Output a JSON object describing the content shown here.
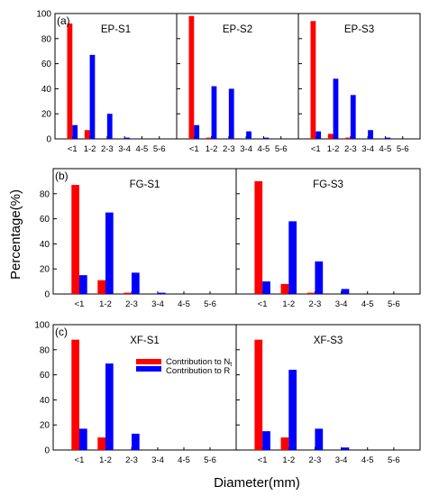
{
  "figure": {
    "ylabel": "Percentage(%)",
    "xlabel": "Diameter(mm)",
    "legend": [
      {
        "label_text": "Contribution to N",
        "label_sub": "t",
        "color": "#ff0000"
      },
      {
        "label_text": "Contribution to R",
        "label_sub": "",
        "color": "#0000ff"
      }
    ]
  },
  "chart_data": [
    {
      "type": "bar",
      "row_label": "(a)",
      "title": "EP-S1",
      "categories": [
        "<1",
        "1-2",
        "2-3",
        "3-4",
        "4-5",
        "5-6"
      ],
      "series": [
        {
          "values": [
            92,
            7,
            0,
            0,
            0,
            0
          ]
        },
        {
          "values": [
            11,
            67,
            20,
            1,
            0,
            0
          ]
        }
      ],
      "ylim": [
        0,
        100
      ],
      "yticks": [
        0,
        20,
        40,
        60,
        80,
        100
      ]
    },
    {
      "type": "bar",
      "row_label": "",
      "title": "EP-S2",
      "categories": [
        "<1",
        "1-2",
        "2-3",
        "3-4",
        "4-5",
        "5-6"
      ],
      "series": [
        {
          "values": [
            98,
            1,
            0,
            0,
            0,
            0
          ]
        },
        {
          "values": [
            11,
            42,
            40,
            6,
            1,
            0
          ]
        }
      ],
      "ylim": [
        0,
        100
      ],
      "yticks": [
        0,
        20,
        40,
        60,
        80,
        100
      ]
    },
    {
      "type": "bar",
      "row_label": "",
      "title": "EP-S3",
      "categories": [
        "<1",
        "1-2",
        "2-3",
        "3-4",
        "4-5",
        "5-6"
      ],
      "series": [
        {
          "values": [
            94,
            4,
            1,
            0,
            0,
            0
          ]
        },
        {
          "values": [
            6,
            48,
            35,
            7,
            1,
            0
          ]
        }
      ],
      "ylim": [
        0,
        100
      ],
      "yticks": [
        0,
        20,
        40,
        60,
        80,
        100
      ]
    },
    {
      "type": "bar",
      "row_label": "(b)",
      "title": "FG-S1",
      "categories": [
        "<1",
        "1-2",
        "2-3",
        "3-4",
        "4-5",
        "5-6"
      ],
      "series": [
        {
          "values": [
            87,
            11,
            1,
            0,
            0,
            0
          ]
        },
        {
          "values": [
            15,
            65,
            17,
            1,
            0,
            0
          ]
        }
      ],
      "ylim": [
        0,
        100
      ],
      "yticks": [
        0,
        20,
        40,
        60,
        80
      ]
    },
    {
      "type": "bar",
      "row_label": "",
      "title": "FG-S3",
      "categories": [
        "<1",
        "1-2",
        "2-3",
        "3-4",
        "4-5",
        "5-6"
      ],
      "series": [
        {
          "values": [
            90,
            8,
            1,
            0,
            0,
            0
          ]
        },
        {
          "values": [
            10,
            58,
            26,
            4,
            0,
            0
          ]
        }
      ],
      "ylim": [
        0,
        100
      ],
      "yticks": [
        0,
        20,
        40,
        60,
        80
      ]
    },
    {
      "type": "bar",
      "row_label": "(c)",
      "title": "XF-S1",
      "categories": [
        "<1",
        "1-2",
        "2-3",
        "3-4",
        "4-5",
        "5-6"
      ],
      "series": [
        {
          "values": [
            88,
            10,
            0,
            0,
            0,
            0
          ]
        },
        {
          "values": [
            17,
            69,
            13,
            0,
            0,
            0
          ]
        }
      ],
      "ylim": [
        0,
        100
      ],
      "yticks": [
        0,
        20,
        40,
        60,
        80,
        100
      ]
    },
    {
      "type": "bar",
      "row_label": "",
      "title": "XF-S3",
      "categories": [
        "<1",
        "1-2",
        "2-3",
        "3-4",
        "4-5",
        "5-6"
      ],
      "series": [
        {
          "values": [
            88,
            10,
            0,
            0,
            0,
            0
          ]
        },
        {
          "values": [
            15,
            64,
            17,
            2,
            0,
            0
          ]
        }
      ],
      "ylim": [
        0,
        100
      ],
      "yticks": [
        0,
        20,
        40,
        60,
        80,
        100
      ]
    }
  ]
}
